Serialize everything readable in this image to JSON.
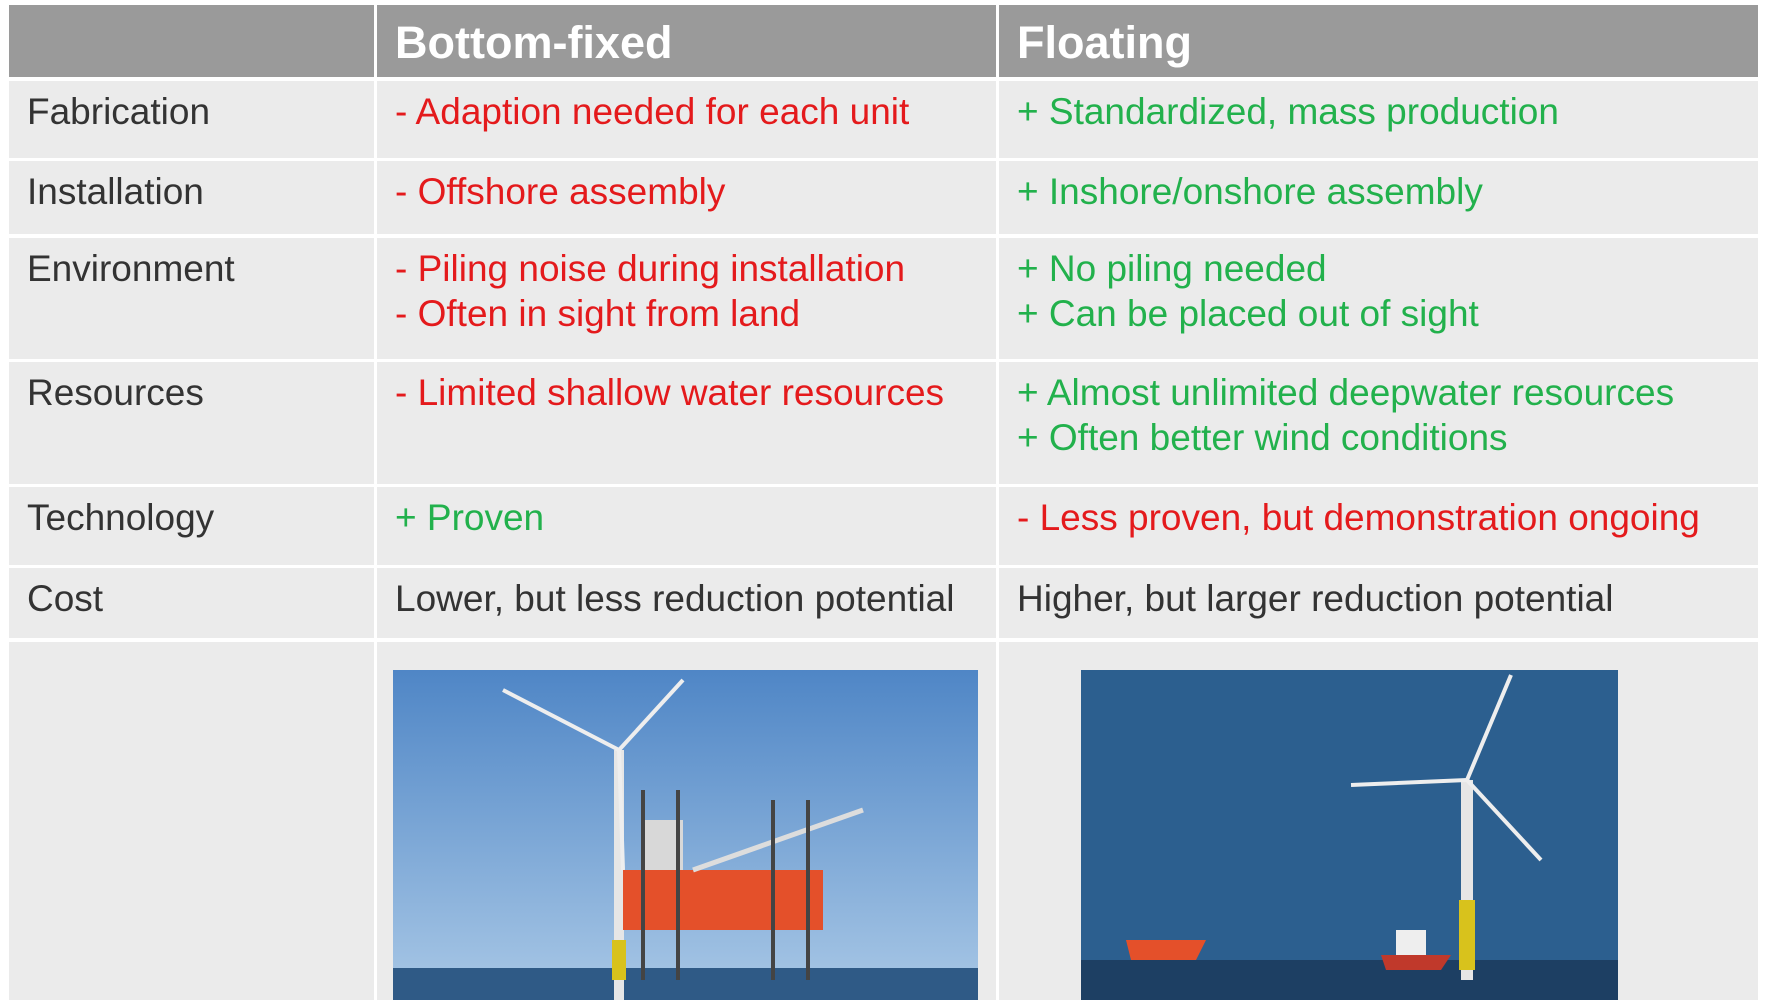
{
  "header": [
    "",
    "Bottom-fixed",
    "Floating"
  ],
  "rows": [
    {
      "label": "Fabrication",
      "bottom_fixed": [
        "- Adaption needed for each unit"
      ],
      "floating": [
        "+ Standardized, mass production"
      ]
    },
    {
      "label": "Installation",
      "bottom_fixed": [
        "- Offshore assembly"
      ],
      "floating": [
        "+ Inshore/onshore assembly"
      ]
    },
    {
      "label": "Environment",
      "bottom_fixed": [
        "- Piling noise during installation",
        "- Often in sight from land"
      ],
      "floating": [
        "+ No piling needed",
        "+ Can be placed out of sight"
      ]
    },
    {
      "label": "Resources",
      "bottom_fixed": [
        "- Limited shallow water resources"
      ],
      "floating": [
        "+ Almost unlimited deepwater resources",
        "+ Often better wind conditions"
      ]
    },
    {
      "label": "Technology",
      "bottom_fixed": [
        "+ Proven"
      ],
      "floating": [
        "- Less proven, but demonstration ongoing"
      ]
    },
    {
      "label": "Cost",
      "bottom_fixed": [
        "Lower, but less reduction potential"
      ],
      "floating": [
        "Higher, but larger reduction potential"
      ]
    }
  ]
}
